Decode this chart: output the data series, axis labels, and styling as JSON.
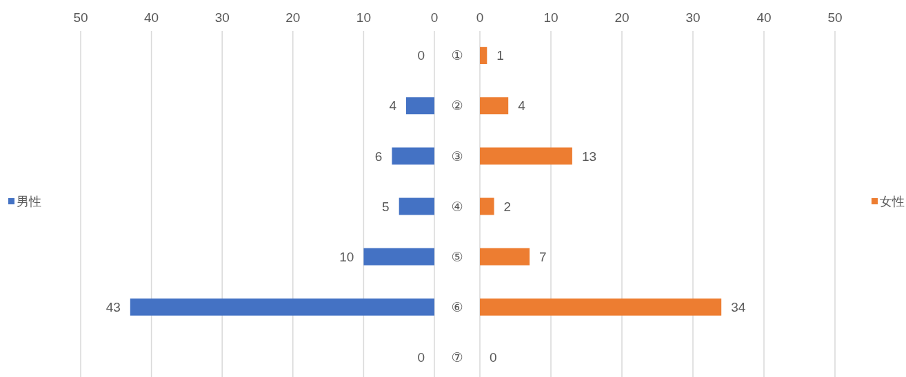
{
  "chart_data": [
    {
      "type": "bar",
      "orientation": "horizontal",
      "categories": [
        "①",
        "②",
        "③",
        "④",
        "⑤",
        "⑥",
        "⑦"
      ],
      "xlim": [
        50,
        0
      ],
      "xticks": [
        50,
        40,
        30,
        20,
        10,
        0
      ],
      "grid": "x",
      "legend": "left",
      "data_labels": true,
      "series": [
        {
          "name": "男性",
          "color": "#4472c4",
          "values": [
            0,
            4,
            6,
            5,
            10,
            43,
            0
          ]
        }
      ]
    },
    {
      "type": "bar",
      "orientation": "horizontal",
      "categories": [
        null,
        null,
        null,
        null,
        null,
        null,
        null
      ],
      "xlim": [
        0,
        50
      ],
      "xticks": [
        0,
        10,
        20,
        30,
        40,
        50
      ],
      "grid": "x",
      "tick_labels": "x",
      "legend": "right",
      "data_labels": true,
      "series": [
        {
          "name": "女性",
          "color": "#ed7d31",
          "values": [
            1,
            4,
            13,
            2,
            7,
            34,
            0
          ]
        }
      ]
    }
  ]
}
